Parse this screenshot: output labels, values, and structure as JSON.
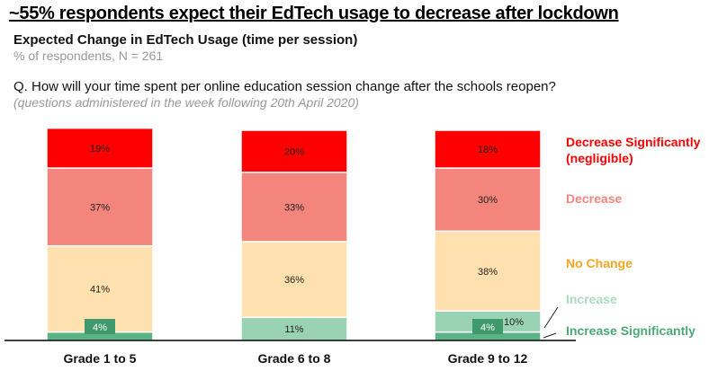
{
  "header": {
    "title": "~55% respondents expect their EdTech usage to decrease after lockdown",
    "subtitle": "Expected Change in EdTech Usage (time per session)",
    "note": "% of respondents, N = 261",
    "question": "Q. How will your time spent per online education session change after the schools reopen?",
    "question_note": "(questions administered in the week following 20th April 2020)"
  },
  "chart_data": {
    "type": "bar",
    "stacked": true,
    "title": "Expected Change in EdTech Usage (time per session)",
    "ylabel": "% of respondents",
    "categories": [
      "Grade 1 to 5",
      "Grade 6 to 8",
      "Grade 9 to 12"
    ],
    "series": [
      {
        "name": "Increase Significantly",
        "color": "#5BB285",
        "label_color": "#4CA877",
        "values": [
          4,
          0,
          4
        ]
      },
      {
        "name": "Increase",
        "color": "#9AD3B3",
        "label_color": "#A8DCC0",
        "values": [
          0,
          11,
          10
        ]
      },
      {
        "name": "No Change",
        "color": "#FFE0AE",
        "label_color": "#F5A623",
        "values": [
          41,
          36,
          38
        ]
      },
      {
        "name": "Decrease",
        "color": "#F4857C",
        "label_color": "#F4857C",
        "values": [
          37,
          33,
          30
        ]
      },
      {
        "name": "Decrease Significantly (negligible)",
        "color": "#FF0000",
        "label_color": "#FF0000",
        "values": [
          19,
          20,
          18
        ]
      }
    ],
    "legend_lines": {
      "Decrease Significantly (negligible)": [
        "Decrease Significantly",
        "(negligible)"
      ]
    },
    "legend": "right",
    "ylim": [
      0,
      100
    ]
  }
}
